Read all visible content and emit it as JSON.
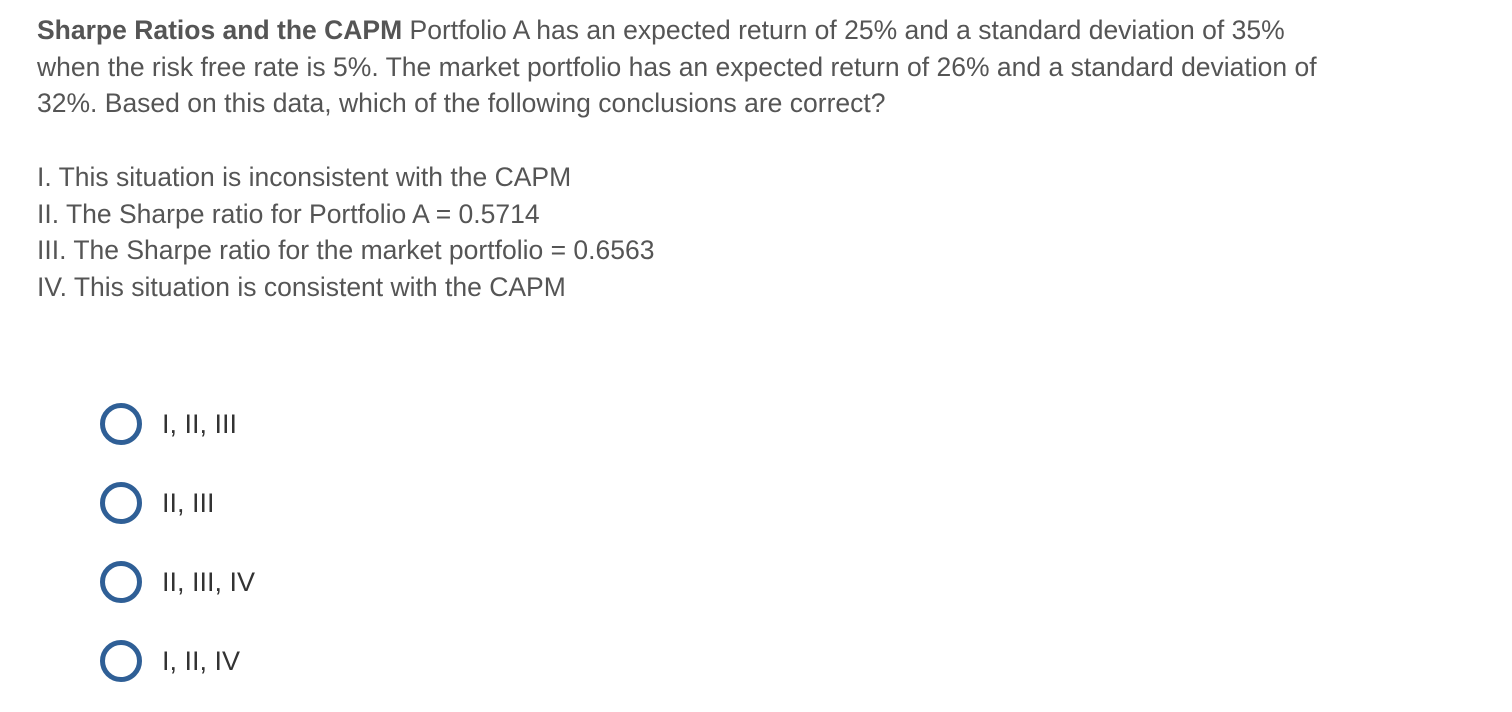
{
  "question": {
    "title": "Sharpe Ratios and the CAPM",
    "lines": [
      "Portfolio A has an expected return of 25% and a standard deviation of 35%",
      "when the risk free rate is 5%. The market portfolio has an expected return of 26% and a standard deviation of",
      "32%. Based on this data, which of the following conclusions are correct?"
    ],
    "statements": [
      "I. This situation is inconsistent with the CAPM",
      "II. The Sharpe ratio for Portfolio A = 0.5714",
      "III. The Sharpe ratio for the market portfolio = 0.6563",
      "IV. This situation is consistent with the CAPM"
    ]
  },
  "options": [
    {
      "label": "I, II, III",
      "selected": false
    },
    {
      "label": "II, III",
      "selected": false
    },
    {
      "label": "II, III, IV",
      "selected": false
    },
    {
      "label": "I, II, IV",
      "selected": false
    }
  ],
  "colors": {
    "radio": "#2f5f96",
    "text": "#555555"
  }
}
